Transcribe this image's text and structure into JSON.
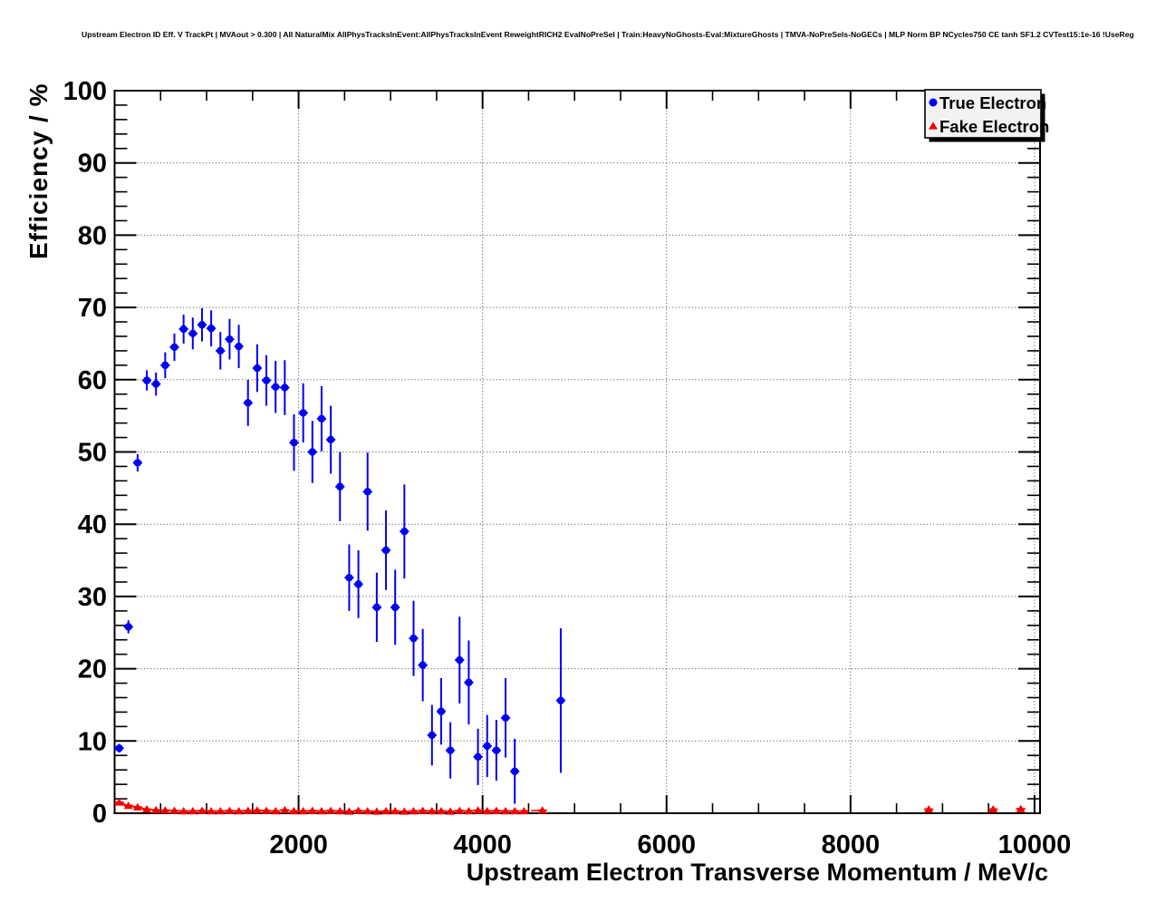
{
  "title": "Upstream Electron ID Eff. V TrackPt | MVAout > 0.300 | All NaturalMix AllPhysTracksInEvent:AllPhysTracksInEvent ReweightRICH2 EvalNoPreSel | Train:HeavyNoGhosts-Eval:MixtureGhosts | TMVA-NoPreSels-NoGECs | MLP Norm BP NCycles750 CE tanh SF1.2 CVTest15:1e-16 !UseReg",
  "legend": {
    "entries": [
      {
        "label": "True Electron",
        "marker": "circle",
        "color": "#0000f5"
      },
      {
        "label": "Fake Electron",
        "marker": "triangle",
        "color": "#f50000"
      }
    ]
  },
  "chart_data": {
    "type": "scatter",
    "title": "Upstream Electron ID Eff. V TrackPt",
    "xlabel": "Upstream Electron Transverse Momentum / MeV/c",
    "ylabel": "Efficiency / %",
    "xlim": [
      0,
      10060
    ],
    "ylim": [
      0,
      100
    ],
    "grid": "dotted",
    "legend_position": "top-right",
    "x_ticks": [
      {
        "v": 2000,
        "label": "2000"
      },
      {
        "v": 4000,
        "label": "4000"
      },
      {
        "v": 6000,
        "label": "6000"
      },
      {
        "v": 8000,
        "label": "8000"
      },
      {
        "v": 10000,
        "label": "10000"
      }
    ],
    "y_ticks": [
      {
        "v": 0,
        "label": "0"
      },
      {
        "v": 10,
        "label": "10"
      },
      {
        "v": 20,
        "label": "20"
      },
      {
        "v": 30,
        "label": "30"
      },
      {
        "v": 40,
        "label": "40"
      },
      {
        "v": 50,
        "label": "50"
      },
      {
        "v": 60,
        "label": "60"
      },
      {
        "v": 70,
        "label": "70"
      },
      {
        "v": 80,
        "label": "80"
      },
      {
        "v": 90,
        "label": "90"
      },
      {
        "v": 100,
        "label": "100"
      }
    ],
    "x_minor_step": 500,
    "y_minor_step": 2,
    "x_bin_halfwidth": 50,
    "series": [
      {
        "name": "True Electron",
        "color": "#0000f5",
        "marker": "circle",
        "line": "none",
        "points": [
          [
            50,
            9.0,
            0.6
          ],
          [
            150,
            25.8,
            0.9
          ],
          [
            250,
            48.5,
            1.2
          ],
          [
            350,
            59.9,
            1.4
          ],
          [
            450,
            59.4,
            1.6
          ],
          [
            550,
            62.0,
            1.8
          ],
          [
            650,
            64.5,
            1.9
          ],
          [
            750,
            67.0,
            2.0
          ],
          [
            850,
            66.4,
            2.2
          ],
          [
            950,
            67.6,
            2.3
          ],
          [
            1050,
            67.1,
            2.5
          ],
          [
            1150,
            64.0,
            2.6
          ],
          [
            1250,
            65.6,
            2.8
          ],
          [
            1350,
            64.6,
            3.0
          ],
          [
            1450,
            56.8,
            3.2
          ],
          [
            1550,
            61.6,
            3.3
          ],
          [
            1650,
            59.9,
            3.5
          ],
          [
            1750,
            59.0,
            3.6
          ],
          [
            1850,
            58.9,
            3.8
          ],
          [
            1950,
            51.3,
            3.9
          ],
          [
            2050,
            55.4,
            4.1
          ],
          [
            2150,
            50.0,
            4.3
          ],
          [
            2250,
            54.6,
            4.5
          ],
          [
            2350,
            51.7,
            4.7
          ],
          [
            2450,
            45.2,
            4.8
          ],
          [
            2550,
            32.6,
            4.6
          ],
          [
            2650,
            31.7,
            4.7
          ],
          [
            2750,
            44.5,
            5.4
          ],
          [
            2850,
            28.5,
            4.8
          ],
          [
            2950,
            36.4,
            5.5
          ],
          [
            3050,
            28.5,
            5.2
          ],
          [
            3150,
            39.0,
            6.5
          ],
          [
            3250,
            24.2,
            5.2
          ],
          [
            3350,
            20.5,
            5.0
          ],
          [
            3450,
            10.8,
            4.2
          ],
          [
            3550,
            14.1,
            4.6
          ],
          [
            3650,
            8.7,
            3.9
          ],
          [
            3750,
            21.2,
            6.0
          ],
          [
            3850,
            18.1,
            5.8
          ],
          [
            3950,
            7.8,
            3.9
          ],
          [
            4050,
            9.3,
            4.3
          ],
          [
            4150,
            8.7,
            4.2
          ],
          [
            4250,
            13.2,
            5.5
          ],
          [
            4350,
            5.8,
            4.5
          ],
          [
            4850,
            15.6,
            10.0
          ]
        ]
      },
      {
        "name": "Fake Electron",
        "color": "#f50000",
        "marker": "triangle",
        "line": "dashed",
        "line_x_max": 4700,
        "points": [
          [
            50,
            1.5,
            0.3
          ],
          [
            150,
            1.05,
            0.25
          ],
          [
            250,
            0.85,
            0.2
          ],
          [
            350,
            0.55,
            0.15
          ],
          [
            450,
            0.45,
            0.15
          ],
          [
            550,
            0.4,
            0.12
          ],
          [
            650,
            0.35,
            0.12
          ],
          [
            750,
            0.3,
            0.1
          ],
          [
            850,
            0.3,
            0.1
          ],
          [
            950,
            0.35,
            0.1
          ],
          [
            1050,
            0.3,
            0.1
          ],
          [
            1150,
            0.3,
            0.1
          ],
          [
            1250,
            0.35,
            0.1
          ],
          [
            1350,
            0.3,
            0.1
          ],
          [
            1450,
            0.35,
            0.1
          ],
          [
            1550,
            0.4,
            0.12
          ],
          [
            1650,
            0.35,
            0.12
          ],
          [
            1750,
            0.3,
            0.1
          ],
          [
            1850,
            0.45,
            0.15
          ],
          [
            1950,
            0.3,
            0.1
          ],
          [
            2050,
            0.3,
            0.1
          ],
          [
            2150,
            0.35,
            0.12
          ],
          [
            2250,
            0.3,
            0.1
          ],
          [
            2350,
            0.35,
            0.12
          ],
          [
            2450,
            0.3,
            0.1
          ],
          [
            2550,
            0.25,
            0.1
          ],
          [
            2650,
            0.35,
            0.12
          ],
          [
            2750,
            0.3,
            0.1
          ],
          [
            2850,
            0.25,
            0.1
          ],
          [
            2950,
            0.3,
            0.12
          ],
          [
            3050,
            0.3,
            0.12
          ],
          [
            3150,
            0.25,
            0.1
          ],
          [
            3250,
            0.3,
            0.12
          ],
          [
            3350,
            0.35,
            0.15
          ],
          [
            3450,
            0.3,
            0.12
          ],
          [
            3550,
            0.3,
            0.12
          ],
          [
            3650,
            0.25,
            0.12
          ],
          [
            3750,
            0.35,
            0.15
          ],
          [
            3850,
            0.3,
            0.15
          ],
          [
            3950,
            0.4,
            0.2
          ],
          [
            4050,
            0.3,
            0.15
          ],
          [
            4150,
            0.35,
            0.18
          ],
          [
            4250,
            0.3,
            0.15
          ],
          [
            4350,
            0.3,
            0.18
          ],
          [
            4450,
            0.3,
            0.18
          ],
          [
            4650,
            0.4,
            0.25
          ],
          [
            8850,
            0.55,
            0.3
          ],
          [
            9550,
            0.55,
            0.3
          ],
          [
            9850,
            0.6,
            0.35
          ]
        ]
      }
    ]
  }
}
